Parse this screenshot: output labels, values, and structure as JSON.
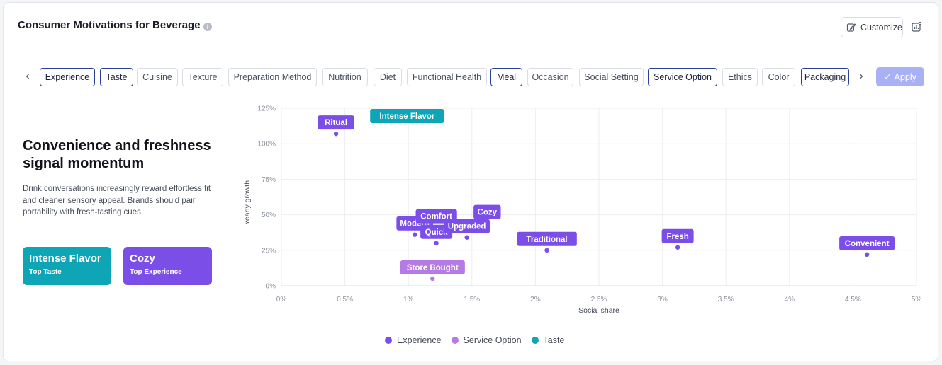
{
  "header": {
    "title": "Consumer Motivations for Beverage",
    "info_symbol": "i",
    "customize_label": "Customize"
  },
  "filters": {
    "chips": [
      {
        "label": "Experience",
        "selected": true
      },
      {
        "label": "Taste",
        "selected": true
      },
      {
        "label": "Cuisine",
        "selected": false
      },
      {
        "label": "Texture",
        "selected": false
      },
      {
        "label": "Preparation Method",
        "selected": false
      },
      {
        "label": "Nutrition",
        "selected": false
      },
      {
        "label": "Diet",
        "selected": false
      },
      {
        "label": "Functional Health",
        "selected": false
      },
      {
        "label": "Meal",
        "selected": true
      },
      {
        "label": "Occasion",
        "selected": false
      },
      {
        "label": "Social Setting",
        "selected": false
      },
      {
        "label": "Service Option",
        "selected": true
      },
      {
        "label": "Ethics",
        "selected": false
      },
      {
        "label": "Color",
        "selected": false
      },
      {
        "label": "Packaging",
        "selected": true
      }
    ],
    "prev_symbol": "‹",
    "next_symbol": "›",
    "apply_label": "Apply",
    "apply_symbol": "✓"
  },
  "insight": {
    "title": "Convenience and freshness signal momentum",
    "body": "Drink conversations increasingly reward effortless fit and cleaner sensory appeal. Brands should pair portability with fresh-tasting cues.",
    "cards": [
      {
        "name": "Intense Flavor",
        "subtitle": "Top Taste",
        "color": "#0ea5b7"
      },
      {
        "name": "Cozy",
        "subtitle": "Top Experience",
        "color": "#7c4ee8"
      }
    ]
  },
  "chart_data": {
    "type": "scatter",
    "xlabel": "Social share",
    "ylabel": "Yearly growth",
    "xlim": [
      0,
      5
    ],
    "ylim": [
      0,
      125
    ],
    "x_ticks": [
      "0%",
      "0.5%",
      "1%",
      "1.5%",
      "2%",
      "2.5%",
      "3%",
      "3.5%",
      "4%",
      "4.5%",
      "5%"
    ],
    "y_ticks": [
      "0%",
      "25%",
      "50%",
      "75%",
      "100%",
      "125%"
    ],
    "grid": true,
    "legend_position": "bottom",
    "series": [
      {
        "name": "Experience",
        "color": "#7c4ee8",
        "points": [
          {
            "label": "Ritual",
            "x": 0.43,
            "y": 107
          },
          {
            "label": "Modern",
            "x": 1.05,
            "y": 36
          },
          {
            "label": "Comfort",
            "x": 1.22,
            "y": 41
          },
          {
            "label": "Quick",
            "x": 1.22,
            "y": 30
          },
          {
            "label": "Upgraded",
            "x": 1.46,
            "y": 34
          },
          {
            "label": "Cozy",
            "x": 1.62,
            "y": 44
          },
          {
            "label": "Traditional",
            "x": 2.09,
            "y": 25
          },
          {
            "label": "Fresh",
            "x": 3.12,
            "y": 27
          },
          {
            "label": "Convenient",
            "x": 4.61,
            "y": 22
          }
        ]
      },
      {
        "name": "Service Option",
        "color": "#b57ae6",
        "points": [
          {
            "label": "Store Bought",
            "x": 1.19,
            "y": 5
          }
        ]
      },
      {
        "name": "Taste",
        "color": "#0ea5b7",
        "points": [
          {
            "label": "Intense Flavor",
            "x": 0.99,
            "y": 125
          }
        ]
      }
    ]
  }
}
